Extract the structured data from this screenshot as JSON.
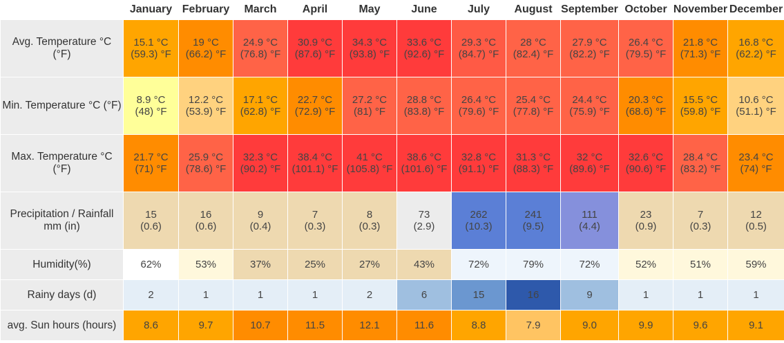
{
  "chart_data": {
    "type": "table",
    "months": [
      "January",
      "February",
      "March",
      "April",
      "May",
      "June",
      "July",
      "August",
      "September",
      "October",
      "November",
      "December"
    ],
    "rows": [
      {
        "key": "avg_temp",
        "label_lines": [
          "Avg. Temperature °C",
          "(°F)"
        ],
        "double": true,
        "line1": [
          "15.1 °C",
          "19 °C",
          "24.9 °C",
          "30.9 °C",
          "34.3 °C",
          "33.6 °C",
          "29.3 °C",
          "28 °C",
          "27.9 °C",
          "26.4 °C",
          "21.8 °C",
          "16.8 °C"
        ],
        "line2": [
          "(59.3) °F",
          "(66.2) °F",
          "(76.8) °F",
          "(87.6) °F",
          "(93.8) °F",
          "(92.6) °F",
          "(84.7) °F",
          "(82.4) °F",
          "(82.2) °F",
          "(79.5) °F",
          "(71.3) °F",
          "(62.2) °F"
        ],
        "colors": [
          "#ffa500",
          "#ff8c00",
          "#ff6347",
          "#ff3b3b",
          "#ff3b3b",
          "#ff3b3b",
          "#ff5a45",
          "#ff6347",
          "#ff6347",
          "#ff6347",
          "#ff8c00",
          "#ffa500"
        ]
      },
      {
        "key": "min_temp",
        "label_lines": [
          "Min. Temperature °C (°F)",
          ""
        ],
        "double": true,
        "line1": [
          "8.9 °C",
          "12.2 °C",
          "17.1 °C",
          "22.7 °C",
          "27.2 °C",
          "28.8 °C",
          "26.4 °C",
          "25.4 °C",
          "24.4 °C",
          "20.3 °C",
          "15.5 °C",
          "10.6 °C"
        ],
        "line2": [
          "(48) °F",
          "(53.9) °F",
          "(62.8) °F",
          "(72.9) °F",
          "(81) °F",
          "(83.8) °F",
          "(79.6) °F",
          "(77.8) °F",
          "(75.9) °F",
          "(68.6) °F",
          "(59.8) °F",
          "(51.1) °F"
        ],
        "colors": [
          "#ffff99",
          "#ffd27f",
          "#ffa500",
          "#ff8c00",
          "#ff6347",
          "#ff6347",
          "#ff6347",
          "#ff6347",
          "#ff6347",
          "#ff8c00",
          "#ffa500",
          "#ffd27f"
        ]
      },
      {
        "key": "max_temp",
        "label_lines": [
          "Max. Temperature °C",
          "(°F)"
        ],
        "double": true,
        "line1": [
          "21.7 °C",
          "25.9 °C",
          "32.3 °C",
          "38.4 °C",
          "41 °C",
          "38.6 °C",
          "32.8 °C",
          "31.3 °C",
          "32 °C",
          "32.6 °C",
          "28.4 °C",
          "23.4 °C"
        ],
        "line2": [
          "(71) °F",
          "(78.6) °F",
          "(90.2) °F",
          "(101.1) °F",
          "(105.8) °F",
          "(101.6) °F",
          "(91.1) °F",
          "(88.3) °F",
          "(89.6) °F",
          "(90.6) °F",
          "(83.2) °F",
          "(74) °F"
        ],
        "colors": [
          "#ff8c00",
          "#ff6347",
          "#ff3b3b",
          "#ff3b3b",
          "#ff3b3b",
          "#ff3b3b",
          "#ff3b3b",
          "#ff3b3b",
          "#ff3b3b",
          "#ff3b3b",
          "#ff6347",
          "#ff8c00"
        ]
      },
      {
        "key": "precip",
        "label_lines": [
          "Precipitation / Rainfall",
          "mm (in)"
        ],
        "double": true,
        "line1": [
          "15",
          "16",
          "9",
          "7",
          "8",
          "73",
          "262",
          "241",
          "111",
          "23",
          "7",
          "12"
        ],
        "line2": [
          "(0.6)",
          "(0.6)",
          "(0.4)",
          "(0.3)",
          "(0.3)",
          "(2.9)",
          "(10.3)",
          "(9.5)",
          "(4.4)",
          "(0.9)",
          "(0.3)",
          "(0.5)"
        ],
        "colors": [
          "#eed9b0",
          "#eed9b0",
          "#eed9b0",
          "#eed9b0",
          "#eed9b0",
          "#ececec",
          "#5b7fd6",
          "#5b7fd6",
          "#8590dc",
          "#eed9b0",
          "#eed9b0",
          "#eed9b0"
        ]
      },
      {
        "key": "humidity",
        "label_lines": [
          "Humidity(%)"
        ],
        "double": false,
        "line1": [
          "62%",
          "53%",
          "37%",
          "25%",
          "27%",
          "43%",
          "72%",
          "79%",
          "72%",
          "52%",
          "51%",
          "59%"
        ],
        "colors": [
          "#ffffff",
          "#fff8dc",
          "#eed9b0",
          "#eed9b0",
          "#eed9b0",
          "#eed9b0",
          "#eef5fc",
          "#eef5fc",
          "#eef5fc",
          "#fff8dc",
          "#fff8dc",
          "#fff8dc"
        ]
      },
      {
        "key": "rainy_days",
        "label_lines": [
          "Rainy days (d)"
        ],
        "double": false,
        "line1": [
          "2",
          "1",
          "1",
          "1",
          "2",
          "6",
          "15",
          "16",
          "9",
          "1",
          "1",
          "1"
        ],
        "colors": [
          "#e4eef7",
          "#e4eef7",
          "#e4eef7",
          "#e4eef7",
          "#e4eef7",
          "#9fbfe0",
          "#6b97d0",
          "#2e59ab",
          "#9fbfe0",
          "#e4eef7",
          "#e4eef7",
          "#e4eef7"
        ]
      },
      {
        "key": "sun_hours",
        "label_lines": [
          "avg. Sun hours (hours)"
        ],
        "double": false,
        "line1": [
          "8.6",
          "9.7",
          "10.7",
          "11.5",
          "12.1",
          "11.6",
          "8.8",
          "7.9",
          "9.0",
          "9.9",
          "9.6",
          "9.1"
        ],
        "colors": [
          "#ffa500",
          "#ffa500",
          "#ff8c00",
          "#ff8c00",
          "#ff8c00",
          "#ff8c00",
          "#ffa500",
          "#ffc462",
          "#ffa500",
          "#ffa500",
          "#ffa500",
          "#ffa500"
        ]
      }
    ]
  }
}
